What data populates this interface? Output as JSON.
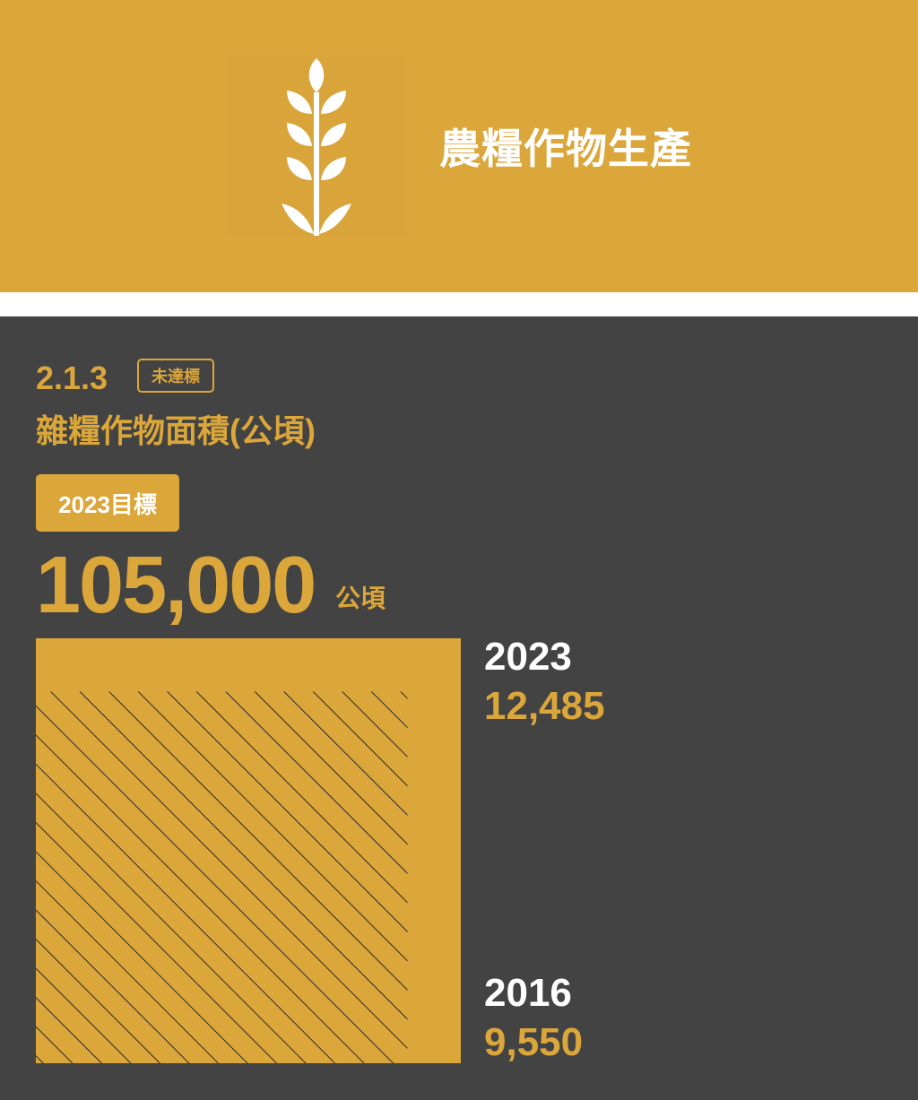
{
  "header": {
    "title": "農糧作物生產",
    "icon": "wheat-icon"
  },
  "indicator": {
    "code": "2.1.3",
    "status": "未達標",
    "title": "雜糧作物面積(公頃)",
    "target_label": "2023目標",
    "target_value": "105,000",
    "target_unit": "公頃"
  },
  "colors": {
    "accent": "#dba63a",
    "panel": "#434343",
    "text_light": "#ffffff"
  },
  "chart_data": {
    "type": "bar",
    "categories": [
      "2023",
      "2016"
    ],
    "values": [
      12485,
      9550
    ],
    "value_labels": [
      "12,485",
      "9,550"
    ],
    "pattern": [
      "solid",
      "hatched"
    ]
  }
}
